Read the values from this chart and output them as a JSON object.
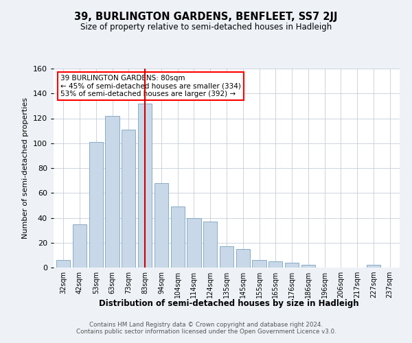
{
  "title": "39, BURLINGTON GARDENS, BENFLEET, SS7 2JJ",
  "subtitle": "Size of property relative to semi-detached houses in Hadleigh",
  "xlabel": "Distribution of semi-detached houses by size in Hadleigh",
  "ylabel": "Number of semi-detached properties",
  "categories": [
    "32sqm",
    "42sqm",
    "53sqm",
    "63sqm",
    "73sqm",
    "83sqm",
    "94sqm",
    "104sqm",
    "114sqm",
    "124sqm",
    "135sqm",
    "145sqm",
    "155sqm",
    "165sqm",
    "176sqm",
    "186sqm",
    "196sqm",
    "206sqm",
    "217sqm",
    "227sqm",
    "237sqm"
  ],
  "values": [
    6,
    35,
    101,
    122,
    111,
    132,
    68,
    49,
    40,
    37,
    17,
    15,
    6,
    5,
    4,
    2,
    0,
    0,
    0,
    2,
    0
  ],
  "highlight_index": 5,
  "highlight_color": "#cc0000",
  "bar_color": "#c8d8e8",
  "bar_edge_color": "#7aa0bc",
  "ylim": [
    0,
    160
  ],
  "yticks": [
    0,
    20,
    40,
    60,
    80,
    100,
    120,
    140,
    160
  ],
  "annotation_title": "39 BURLINGTON GARDENS: 80sqm",
  "annotation_line1": "← 45% of semi-detached houses are smaller (334)",
  "annotation_line2": "53% of semi-detached houses are larger (392) →",
  "footer1": "Contains HM Land Registry data © Crown copyright and database right 2024.",
  "footer2": "Contains public sector information licensed under the Open Government Licence v3.0.",
  "background_color": "#eef2f7",
  "plot_background": "#ffffff"
}
